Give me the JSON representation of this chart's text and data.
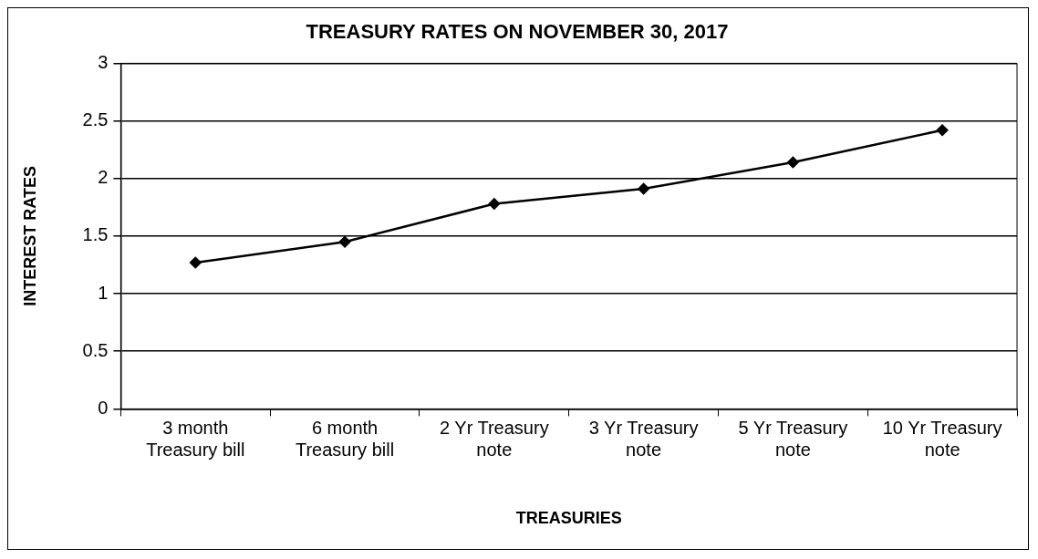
{
  "chart_data": {
    "type": "line",
    "title": "TREASURY RATES ON NOVEMBER 30, 2017",
    "xlabel": "TREASURIES",
    "ylabel": "INTEREST RATES",
    "categories": [
      "3 month Treasury bill",
      "6 month Treasury bill",
      "2 Yr Treasury note",
      "3 Yr Treasury note",
      "5 Yr Treasury note",
      "10 Yr Treasury note"
    ],
    "series": [
      {
        "color": "#000000",
        "values": [
          1.27,
          1.45,
          1.78,
          1.91,
          2.14,
          2.42
        ]
      }
    ],
    "ylim": [
      0,
      3
    ],
    "yticks": [
      0,
      0.5,
      1,
      1.5,
      2,
      2.5,
      3
    ],
    "grid": "y",
    "legend": false,
    "marker": "diamond",
    "line_style": "solid"
  }
}
